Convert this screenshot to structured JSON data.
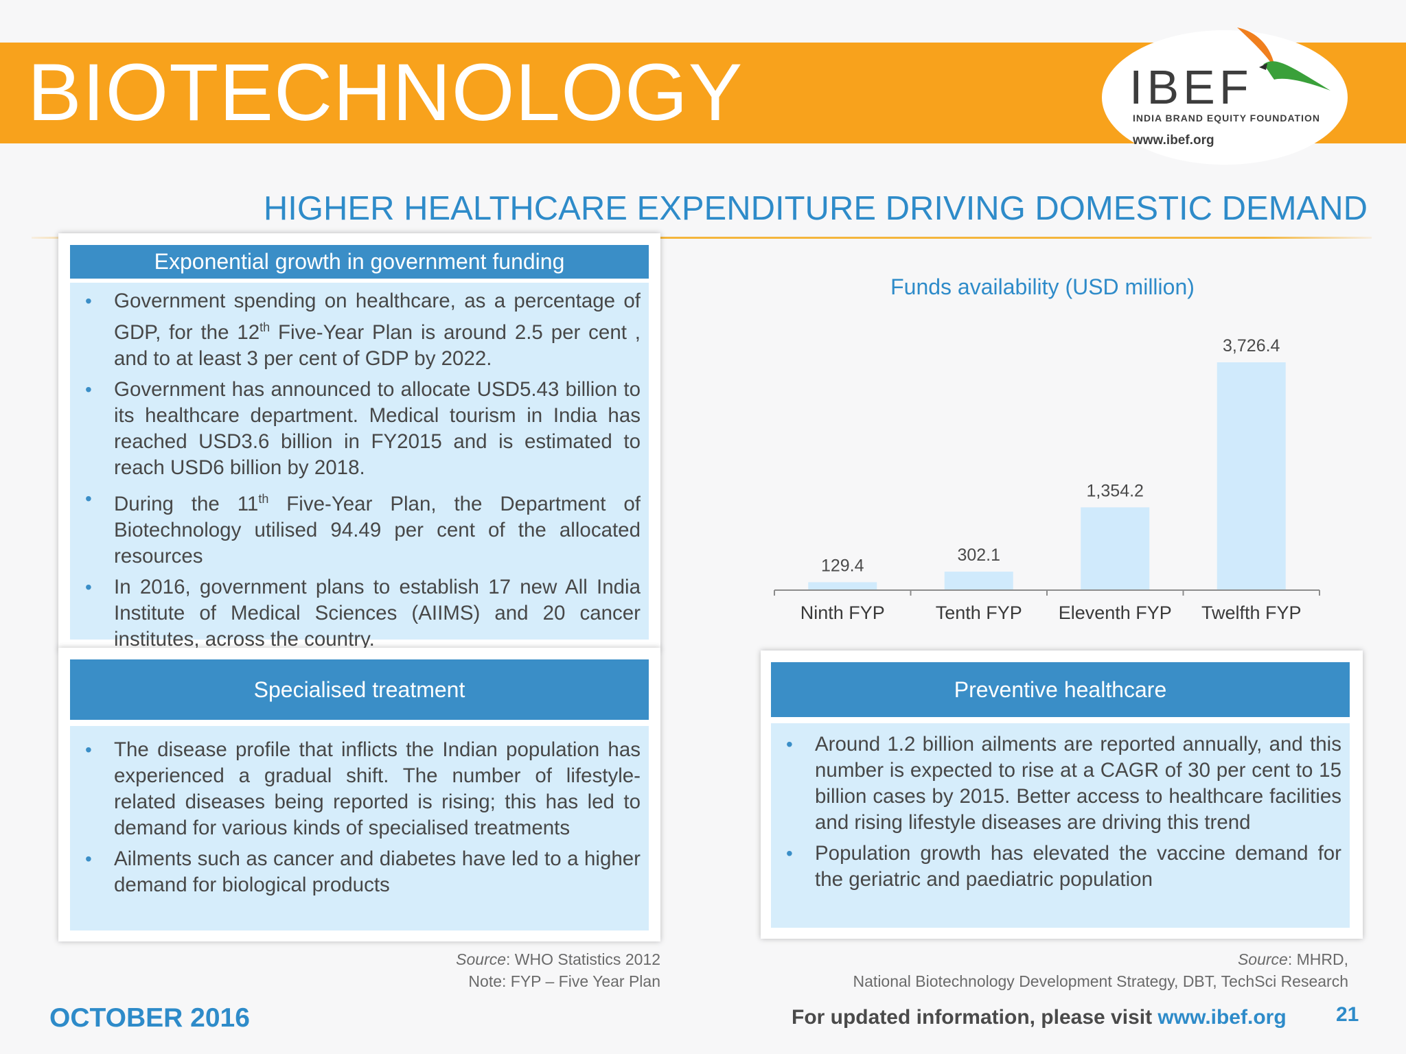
{
  "header": {
    "title": "BIOTECHNOLOGY",
    "logo": {
      "name": "IBEF",
      "subtitle": "INDIA BRAND EQUITY FOUNDATION",
      "url": "www.ibef.org"
    },
    "colors": {
      "banner": "#f8a21c",
      "accent": "#2e8bc9",
      "panel_header": "#3a8ec7",
      "panel_body": "#d6edfb"
    }
  },
  "section_title": "HIGHER HEALTHCARE EXPENDITURE DRIVING DOMESTIC DEMAND",
  "panels": {
    "funding": {
      "title": "Exponential growth in government funding",
      "bullets": [
        {
          "a": "Government spending on healthcare, as a percentage of GDP, for the 12",
          "sup": "th",
          "b": " Five-Year Plan is around 2.5 per cent , and to at least 3 per cent of GDP by 2022."
        },
        {
          "a": "Government has announced to allocate USD5.43 billion to its healthcare department. Medical tourism in India has reached USD3.6 billion in FY2015 and is estimated to reach USD6 billion by 2018.",
          "sup": "",
          "b": ""
        },
        {
          "a": "During the 11",
          "sup": "th",
          "b": " Five-Year Plan, the Department of Biotechnology utilised 94.49 per cent of the allocated resources"
        },
        {
          "a": "In 2016, government plans to establish 17 new All India Institute of Medical Sciences (AIIMS) and 20 cancer institutes, across the country.",
          "sup": "",
          "b": ""
        }
      ]
    },
    "specialised": {
      "title": "Specialised treatment",
      "bullets": [
        "The disease profile that inflicts the Indian population has experienced a gradual shift. The number of lifestyle-related diseases being reported is rising; this has led to demand for various kinds of specialised treatments",
        "Ailments such as cancer and diabetes have led to a higher demand for biological products"
      ]
    },
    "preventive": {
      "title": "Preventive healthcare",
      "bullets": [
        "Around 1.2 billion ailments are reported annually, and this number is expected to rise at a CAGR of 30 per cent to 15 billion cases by 2015. Better access to healthcare facilities and rising lifestyle diseases are driving this trend",
        "Population growth has elevated the vaccine demand for the geriatric and paediatric population"
      ]
    }
  },
  "chart_data": {
    "type": "bar",
    "title": "Funds availability (USD million)",
    "categories": [
      "Ninth FYP",
      "Tenth FYP",
      "Eleventh FYP",
      "Twelfth FYP"
    ],
    "values": [
      129.4,
      302.1,
      1354.2,
      3726.4
    ],
    "value_labels": [
      "129.4",
      "302.1",
      "1,354.2",
      "3,726.4"
    ],
    "xlabel": "",
    "ylabel": "",
    "ylim": [
      0,
      3726.4
    ],
    "grid": false,
    "bar_color": "#d0eafc"
  },
  "sources": {
    "left": {
      "label": "Source",
      "text": ": WHO Statistics 2012",
      "note": "Note: FYP – Five Year Plan"
    },
    "right": {
      "label": "Source",
      "text": ": MHRD,",
      "line2": "National Biotechnology Development Strategy, DBT, TechSci Research"
    }
  },
  "footer": {
    "date": "OCTOBER 2016",
    "visit_text": "For updated information, please visit ",
    "visit_link": "www.ibef.org",
    "page_number": "21"
  }
}
